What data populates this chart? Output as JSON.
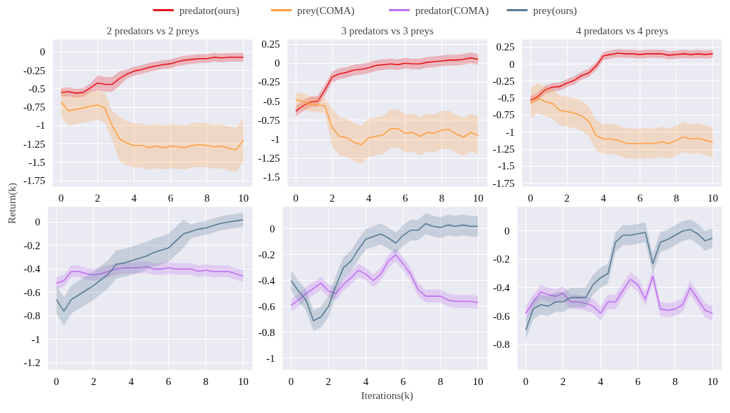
{
  "chart_data": [
    {
      "type": "line",
      "title": "2 predators vs 2 preys",
      "ylabel": "Return(k)",
      "legend": "top",
      "grid": true,
      "xlim": [
        -0.45,
        10.5
      ],
      "xticks": [
        0,
        2,
        4,
        6,
        8,
        10
      ],
      "ylim": [
        -1.83,
        0.17
      ],
      "yticks": [
        0,
        -0.25,
        -0.5,
        -0.75,
        -1,
        -1.25,
        -1.5,
        -1.75
      ],
      "x": [
        0,
        0.4,
        0.8,
        1.2,
        1.6,
        2.0,
        2.4,
        2.8,
        3.2,
        3.6,
        4.0,
        4.4,
        4.8,
        5.2,
        5.6,
        6.0,
        6.4,
        6.8,
        7.2,
        7.6,
        8.0,
        8.4,
        8.8,
        9.2,
        9.6,
        10
      ],
      "series": [
        {
          "name": "predator(ours)",
          "color": "#e8141a",
          "values": [
            -0.55,
            -0.54,
            -0.56,
            -0.55,
            -0.49,
            -0.42,
            -0.44,
            -0.44,
            -0.36,
            -0.3,
            -0.26,
            -0.24,
            -0.21,
            -0.19,
            -0.17,
            -0.16,
            -0.13,
            -0.11,
            -0.1,
            -0.09,
            -0.09,
            -0.07,
            -0.08,
            -0.07,
            -0.07,
            -0.07
          ],
          "lower": [
            -0.61,
            -0.6,
            -0.62,
            -0.61,
            -0.55,
            -0.52,
            -0.54,
            -0.54,
            -0.46,
            -0.36,
            -0.32,
            -0.3,
            -0.27,
            -0.25,
            -0.23,
            -0.22,
            -0.19,
            -0.17,
            -0.16,
            -0.15,
            -0.15,
            -0.13,
            -0.14,
            -0.13,
            -0.13,
            -0.13
          ],
          "upper": [
            -0.49,
            -0.48,
            -0.5,
            -0.49,
            -0.43,
            -0.32,
            -0.34,
            -0.34,
            -0.26,
            -0.24,
            -0.2,
            -0.18,
            -0.15,
            -0.13,
            -0.11,
            -0.1,
            -0.07,
            -0.05,
            -0.04,
            -0.03,
            -0.03,
            -0.01,
            -0.02,
            -0.01,
            -0.01,
            -0.01
          ]
        },
        {
          "name": "prey(COMA)",
          "color": "#ffa040",
          "values": [
            -0.68,
            -0.8,
            -0.78,
            -0.76,
            -0.74,
            -0.72,
            -0.76,
            -1.0,
            -1.18,
            -1.24,
            -1.27,
            -1.27,
            -1.3,
            -1.28,
            -1.3,
            -1.28,
            -1.29,
            -1.3,
            -1.27,
            -1.26,
            -1.27,
            -1.29,
            -1.28,
            -1.31,
            -1.33,
            -1.2
          ],
          "lower": [
            -0.88,
            -1.0,
            -0.98,
            -0.96,
            -0.94,
            -0.92,
            -0.96,
            -1.2,
            -1.48,
            -1.54,
            -1.57,
            -1.57,
            -1.6,
            -1.58,
            -1.6,
            -1.58,
            -1.59,
            -1.6,
            -1.57,
            -1.56,
            -1.57,
            -1.59,
            -1.58,
            -1.61,
            -1.63,
            -1.5
          ],
          "upper": [
            -0.48,
            -0.6,
            -0.58,
            -0.56,
            -0.54,
            -0.52,
            -0.56,
            -0.8,
            -0.88,
            -0.94,
            -0.97,
            -0.97,
            -1.0,
            -0.98,
            -1.0,
            -0.98,
            -0.99,
            -1.0,
            -0.97,
            -0.96,
            -0.97,
            -0.99,
            -0.98,
            -1.01,
            -1.03,
            -0.9
          ]
        }
      ]
    },
    {
      "type": "line",
      "title": "3 predators vs 3 preys",
      "grid": true,
      "xlim": [
        -0.45,
        10.5
      ],
      "xticks": [
        0,
        2,
        4,
        6,
        8,
        10
      ],
      "ylim": [
        -1.62,
        0.31
      ],
      "yticks": [
        0.25,
        0,
        -0.25,
        -0.5,
        -0.75,
        -1,
        -1.25,
        -1.5
      ],
      "x": [
        0,
        0.4,
        0.8,
        1.2,
        1.6,
        2.0,
        2.4,
        2.8,
        3.2,
        3.6,
        4.0,
        4.4,
        4.8,
        5.2,
        5.6,
        6.0,
        6.4,
        6.8,
        7.2,
        7.6,
        8.0,
        8.4,
        8.8,
        9.2,
        9.6,
        10
      ],
      "series": [
        {
          "color": "#e8141a",
          "values": [
            -0.63,
            -0.56,
            -0.51,
            -0.5,
            -0.35,
            -0.18,
            -0.14,
            -0.12,
            -0.09,
            -0.08,
            -0.06,
            -0.03,
            -0.02,
            -0.01,
            -0.02,
            0.0,
            -0.01,
            -0.01,
            0.01,
            0.02,
            0.03,
            0.04,
            0.04,
            0.05,
            0.07,
            0.05
          ],
          "lower": [
            -0.7,
            -0.63,
            -0.58,
            -0.57,
            -0.42,
            -0.25,
            -0.21,
            -0.19,
            -0.16,
            -0.15,
            -0.13,
            -0.1,
            -0.09,
            -0.08,
            -0.09,
            -0.07,
            -0.08,
            -0.08,
            -0.06,
            -0.05,
            -0.04,
            -0.03,
            -0.03,
            -0.02,
            0.0,
            -0.02
          ],
          "upper": [
            -0.56,
            -0.49,
            -0.44,
            -0.43,
            -0.28,
            -0.11,
            -0.07,
            -0.05,
            -0.02,
            -0.01,
            0.01,
            0.04,
            0.05,
            0.06,
            0.05,
            0.07,
            0.06,
            0.06,
            0.08,
            0.09,
            0.1,
            0.11,
            0.11,
            0.12,
            0.14,
            0.12
          ]
        },
        {
          "color": "#ffa040",
          "values": [
            -0.48,
            -0.5,
            -0.54,
            -0.55,
            -0.56,
            -0.85,
            -0.96,
            -0.98,
            -1.04,
            -1.07,
            -0.98,
            -0.96,
            -0.94,
            -0.86,
            -0.86,
            -0.92,
            -0.91,
            -0.96,
            -0.91,
            -0.92,
            -0.88,
            -0.87,
            -0.93,
            -0.97,
            -0.91,
            -0.95
          ],
          "lower": [
            -0.58,
            -0.6,
            -0.64,
            -0.65,
            -0.66,
            -1.1,
            -1.21,
            -1.23,
            -1.29,
            -1.32,
            -1.23,
            -1.21,
            -1.19,
            -1.11,
            -1.11,
            -1.17,
            -1.16,
            -1.21,
            -1.16,
            -1.17,
            -1.13,
            -1.12,
            -1.18,
            -1.22,
            -1.16,
            -1.2
          ],
          "upper": [
            -0.38,
            -0.4,
            -0.44,
            -0.45,
            -0.46,
            -0.6,
            -0.71,
            -0.73,
            -0.79,
            -0.82,
            -0.73,
            -0.71,
            -0.69,
            -0.61,
            -0.61,
            -0.67,
            -0.66,
            -0.71,
            -0.66,
            -0.67,
            -0.63,
            -0.62,
            -0.68,
            -0.72,
            -0.66,
            -0.7
          ]
        }
      ]
    },
    {
      "type": "line",
      "title": "4 predators vs 4 preys",
      "grid": true,
      "xlim": [
        -0.45,
        10.5
      ],
      "xticks": [
        0,
        2,
        4,
        6,
        8,
        10
      ],
      "ylim": [
        -1.8,
        0.36
      ],
      "yticks": [
        0.25,
        0,
        -0.25,
        -0.5,
        -0.75,
        -1,
        -1.25,
        -1.5,
        -1.75
      ],
      "x": [
        0,
        0.4,
        0.8,
        1.2,
        1.6,
        2.0,
        2.4,
        2.8,
        3.2,
        3.6,
        4.0,
        4.4,
        4.8,
        5.2,
        5.6,
        6.0,
        6.4,
        6.8,
        7.2,
        7.6,
        8.0,
        8.4,
        8.8,
        9.2,
        9.6,
        10
      ],
      "series": [
        {
          "color": "#e8141a",
          "values": [
            -0.53,
            -0.48,
            -0.38,
            -0.34,
            -0.33,
            -0.28,
            -0.24,
            -0.17,
            -0.13,
            -0.03,
            0.12,
            0.14,
            0.16,
            0.15,
            0.15,
            0.14,
            0.15,
            0.15,
            0.15,
            0.13,
            0.14,
            0.15,
            0.14,
            0.15,
            0.14,
            0.15
          ],
          "lower": [
            -0.59,
            -0.54,
            -0.44,
            -0.4,
            -0.39,
            -0.34,
            -0.3,
            -0.23,
            -0.19,
            -0.09,
            0.06,
            0.08,
            0.1,
            0.09,
            0.09,
            0.08,
            0.09,
            0.09,
            0.09,
            0.07,
            0.08,
            0.09,
            0.08,
            0.09,
            0.08,
            0.09
          ],
          "upper": [
            -0.47,
            -0.42,
            -0.32,
            -0.28,
            -0.27,
            -0.22,
            -0.18,
            -0.11,
            -0.07,
            0.03,
            0.18,
            0.2,
            0.22,
            0.21,
            0.21,
            0.2,
            0.21,
            0.21,
            0.21,
            0.19,
            0.2,
            0.21,
            0.2,
            0.21,
            0.2,
            0.21
          ]
        },
        {
          "color": "#ffa040",
          "values": [
            -0.58,
            -0.5,
            -0.55,
            -0.58,
            -0.68,
            -0.7,
            -0.72,
            -0.76,
            -0.84,
            -1.05,
            -1.1,
            -1.1,
            -1.12,
            -1.16,
            -1.17,
            -1.17,
            -1.16,
            -1.17,
            -1.14,
            -1.17,
            -1.12,
            -1.07,
            -1.1,
            -1.09,
            -1.12,
            -1.15
          ],
          "lower": [
            -0.8,
            -0.72,
            -0.77,
            -0.8,
            -0.9,
            -0.92,
            -0.94,
            -0.98,
            -1.06,
            -1.27,
            -1.32,
            -1.32,
            -1.34,
            -1.38,
            -1.39,
            -1.39,
            -1.38,
            -1.39,
            -1.36,
            -1.39,
            -1.34,
            -1.29,
            -1.32,
            -1.31,
            -1.34,
            -1.37
          ],
          "upper": [
            -0.36,
            -0.28,
            -0.33,
            -0.36,
            -0.46,
            -0.48,
            -0.5,
            -0.54,
            -0.62,
            -0.83,
            -0.88,
            -0.88,
            -0.9,
            -0.94,
            -0.95,
            -0.95,
            -0.94,
            -0.95,
            -0.92,
            -0.95,
            -0.9,
            -0.85,
            -0.88,
            -0.87,
            -0.9,
            -0.93
          ]
        }
      ]
    },
    {
      "type": "line",
      "legend": "top",
      "grid": true,
      "xlim": [
        -0.45,
        10.5
      ],
      "xticks": [
        0,
        2,
        4,
        6,
        8,
        10
      ],
      "ylim": [
        -1.26,
        0.13
      ],
      "yticks": [
        0,
        -0.2,
        -0.4,
        -0.6,
        -0.8,
        -1,
        -1.2
      ],
      "x": [
        0,
        0.4,
        0.8,
        1.2,
        1.6,
        2.0,
        2.4,
        2.8,
        3.2,
        3.6,
        4.0,
        4.4,
        4.8,
        5.2,
        5.6,
        6.0,
        6.4,
        6.8,
        7.2,
        7.6,
        8.0,
        8.4,
        8.8,
        9.2,
        9.6,
        10
      ],
      "series": [
        {
          "name": "predator(COMA)",
          "color": "#c070f0",
          "values": [
            -0.52,
            -0.5,
            -0.42,
            -0.42,
            -0.44,
            -0.45,
            -0.44,
            -0.42,
            -0.4,
            -0.39,
            -0.39,
            -0.39,
            -0.38,
            -0.4,
            -0.4,
            -0.39,
            -0.4,
            -0.4,
            -0.4,
            -0.42,
            -0.41,
            -0.42,
            -0.42,
            -0.42,
            -0.44,
            -0.46
          ],
          "lower": [
            -0.57,
            -0.55,
            -0.47,
            -0.47,
            -0.49,
            -0.5,
            -0.49,
            -0.47,
            -0.45,
            -0.44,
            -0.44,
            -0.44,
            -0.43,
            -0.45,
            -0.45,
            -0.44,
            -0.45,
            -0.45,
            -0.45,
            -0.47,
            -0.46,
            -0.47,
            -0.47,
            -0.47,
            -0.49,
            -0.51
          ],
          "upper": [
            -0.47,
            -0.45,
            -0.37,
            -0.37,
            -0.39,
            -0.4,
            -0.39,
            -0.37,
            -0.35,
            -0.34,
            -0.34,
            -0.34,
            -0.33,
            -0.35,
            -0.35,
            -0.34,
            -0.35,
            -0.35,
            -0.35,
            -0.37,
            -0.36,
            -0.37,
            -0.37,
            -0.37,
            -0.39,
            -0.41
          ]
        },
        {
          "name": "prey(ours)",
          "color": "#587a92",
          "values": [
            -0.66,
            -0.76,
            -0.66,
            -0.62,
            -0.58,
            -0.54,
            -0.49,
            -0.44,
            -0.36,
            -0.35,
            -0.33,
            -0.31,
            -0.29,
            -0.26,
            -0.24,
            -0.22,
            -0.16,
            -0.1,
            -0.08,
            -0.06,
            -0.05,
            -0.03,
            -0.01,
            0.0,
            0.01,
            0.02
          ],
          "lower": [
            -0.78,
            -0.88,
            -0.78,
            -0.74,
            -0.7,
            -0.66,
            -0.61,
            -0.56,
            -0.48,
            -0.47,
            -0.45,
            -0.43,
            -0.41,
            -0.38,
            -0.36,
            -0.34,
            -0.28,
            -0.22,
            -0.14,
            -0.12,
            -0.11,
            -0.09,
            -0.07,
            -0.06,
            -0.05,
            -0.04
          ],
          "upper": [
            -0.54,
            -0.64,
            -0.54,
            -0.5,
            -0.46,
            -0.42,
            -0.37,
            -0.32,
            -0.24,
            -0.23,
            -0.21,
            -0.19,
            -0.17,
            -0.14,
            -0.12,
            -0.1,
            -0.04,
            0.02,
            -0.02,
            0.0,
            0.01,
            0.03,
            0.05,
            0.06,
            0.07,
            0.08
          ]
        }
      ]
    },
    {
      "type": "line",
      "xlabel": "Iterations(k)",
      "grid": true,
      "xlim": [
        -0.45,
        10.5
      ],
      "xticks": [
        0,
        2,
        4,
        6,
        8,
        10
      ],
      "ylim": [
        -1.09,
        0.17
      ],
      "yticks": [
        0,
        -0.2,
        -0.4,
        -0.6,
        -0.8,
        -1
      ],
      "x": [
        0,
        0.4,
        0.8,
        1.2,
        1.6,
        2.0,
        2.4,
        2.8,
        3.2,
        3.6,
        4.0,
        4.4,
        4.8,
        5.2,
        5.6,
        6.0,
        6.4,
        6.8,
        7.2,
        7.6,
        8.0,
        8.4,
        8.8,
        9.2,
        9.6,
        10
      ],
      "series": [
        {
          "color": "#c070f0",
          "values": [
            -0.59,
            -0.55,
            -0.5,
            -0.46,
            -0.42,
            -0.48,
            -0.5,
            -0.43,
            -0.38,
            -0.32,
            -0.35,
            -0.4,
            -0.35,
            -0.25,
            -0.2,
            -0.27,
            -0.35,
            -0.47,
            -0.52,
            -0.52,
            -0.52,
            -0.55,
            -0.56,
            -0.56,
            -0.56,
            -0.57
          ],
          "lower": [
            -0.64,
            -0.6,
            -0.55,
            -0.51,
            -0.47,
            -0.53,
            -0.55,
            -0.48,
            -0.43,
            -0.37,
            -0.4,
            -0.45,
            -0.4,
            -0.3,
            -0.25,
            -0.32,
            -0.4,
            -0.52,
            -0.57,
            -0.57,
            -0.57,
            -0.6,
            -0.61,
            -0.61,
            -0.61,
            -0.62
          ],
          "upper": [
            -0.54,
            -0.5,
            -0.45,
            -0.41,
            -0.37,
            -0.43,
            -0.45,
            -0.38,
            -0.33,
            -0.27,
            -0.3,
            -0.35,
            -0.3,
            -0.2,
            -0.15,
            -0.22,
            -0.3,
            -0.42,
            -0.47,
            -0.47,
            -0.47,
            -0.5,
            -0.51,
            -0.51,
            -0.51,
            -0.52
          ]
        },
        {
          "color": "#587a92",
          "values": [
            -0.4,
            -0.48,
            -0.55,
            -0.71,
            -0.68,
            -0.6,
            -0.44,
            -0.3,
            -0.25,
            -0.16,
            -0.08,
            -0.06,
            -0.04,
            -0.07,
            -0.11,
            -0.05,
            -0.01,
            -0.01,
            0.04,
            0.02,
            0.01,
            0.03,
            0.02,
            0.03,
            0.02,
            0.02
          ],
          "lower": [
            -0.48,
            -0.56,
            -0.63,
            -0.79,
            -0.76,
            -0.68,
            -0.52,
            -0.38,
            -0.33,
            -0.24,
            -0.16,
            -0.14,
            -0.12,
            -0.15,
            -0.19,
            -0.13,
            -0.09,
            -0.09,
            -0.04,
            -0.06,
            -0.07,
            -0.05,
            -0.06,
            -0.05,
            -0.06,
            -0.06
          ],
          "upper": [
            -0.32,
            -0.4,
            -0.47,
            -0.63,
            -0.6,
            -0.52,
            -0.36,
            -0.22,
            -0.17,
            -0.08,
            0.0,
            0.02,
            0.04,
            0.01,
            -0.03,
            0.03,
            0.07,
            0.07,
            0.12,
            0.1,
            0.09,
            0.11,
            0.1,
            0.11,
            0.1,
            0.1
          ]
        }
      ]
    },
    {
      "type": "line",
      "grid": true,
      "xlim": [
        -0.45,
        10.5
      ],
      "xticks": [
        0,
        2,
        4,
        6,
        8,
        10
      ],
      "ylim": [
        -0.98,
        0.17
      ],
      "yticks": [
        0,
        -0.2,
        -0.4,
        -0.6,
        -0.8
      ],
      "x": [
        0,
        0.4,
        0.8,
        1.2,
        1.6,
        2.0,
        2.4,
        2.8,
        3.2,
        3.6,
        4.0,
        4.4,
        4.8,
        5.2,
        5.6,
        6.0,
        6.4,
        6.8,
        7.2,
        7.6,
        8.0,
        8.4,
        8.8,
        9.2,
        9.6,
        10
      ],
      "series": [
        {
          "color": "#c070f0",
          "values": [
            -0.58,
            -0.5,
            -0.43,
            -0.45,
            -0.46,
            -0.44,
            -0.5,
            -0.5,
            -0.51,
            -0.53,
            -0.58,
            -0.5,
            -0.5,
            -0.42,
            -0.34,
            -0.38,
            -0.48,
            -0.32,
            -0.55,
            -0.56,
            -0.55,
            -0.52,
            -0.4,
            -0.48,
            -0.56,
            -0.58
          ],
          "lower": [
            -0.63,
            -0.55,
            -0.48,
            -0.5,
            -0.51,
            -0.49,
            -0.55,
            -0.55,
            -0.56,
            -0.58,
            -0.63,
            -0.55,
            -0.55,
            -0.47,
            -0.39,
            -0.43,
            -0.53,
            -0.37,
            -0.6,
            -0.61,
            -0.6,
            -0.57,
            -0.45,
            -0.53,
            -0.61,
            -0.63
          ],
          "upper": [
            -0.53,
            -0.45,
            -0.38,
            -0.4,
            -0.41,
            -0.39,
            -0.45,
            -0.45,
            -0.46,
            -0.48,
            -0.53,
            -0.45,
            -0.45,
            -0.37,
            -0.29,
            -0.33,
            -0.43,
            -0.27,
            -0.5,
            -0.51,
            -0.5,
            -0.47,
            -0.35,
            -0.43,
            -0.51,
            -0.53
          ]
        },
        {
          "color": "#587a92",
          "values": [
            -0.7,
            -0.55,
            -0.52,
            -0.53,
            -0.5,
            -0.5,
            -0.47,
            -0.47,
            -0.47,
            -0.38,
            -0.33,
            -0.3,
            -0.08,
            -0.03,
            -0.03,
            -0.02,
            -0.01,
            -0.23,
            -0.08,
            -0.06,
            -0.03,
            0.0,
            0.01,
            -0.02,
            -0.07,
            -0.05
          ],
          "lower": [
            -0.77,
            -0.62,
            -0.59,
            -0.6,
            -0.57,
            -0.57,
            -0.54,
            -0.54,
            -0.54,
            -0.45,
            -0.4,
            -0.37,
            -0.15,
            -0.1,
            -0.1,
            -0.09,
            -0.08,
            -0.3,
            -0.15,
            -0.13,
            -0.1,
            -0.07,
            -0.06,
            -0.09,
            -0.14,
            -0.12
          ],
          "upper": [
            -0.63,
            -0.48,
            -0.45,
            -0.46,
            -0.43,
            -0.43,
            -0.4,
            -0.4,
            -0.4,
            -0.31,
            -0.26,
            -0.23,
            -0.01,
            0.04,
            0.04,
            0.05,
            0.06,
            -0.16,
            -0.01,
            0.01,
            0.04,
            0.07,
            0.08,
            0.05,
            0.0,
            0.02
          ]
        }
      ]
    }
  ]
}
